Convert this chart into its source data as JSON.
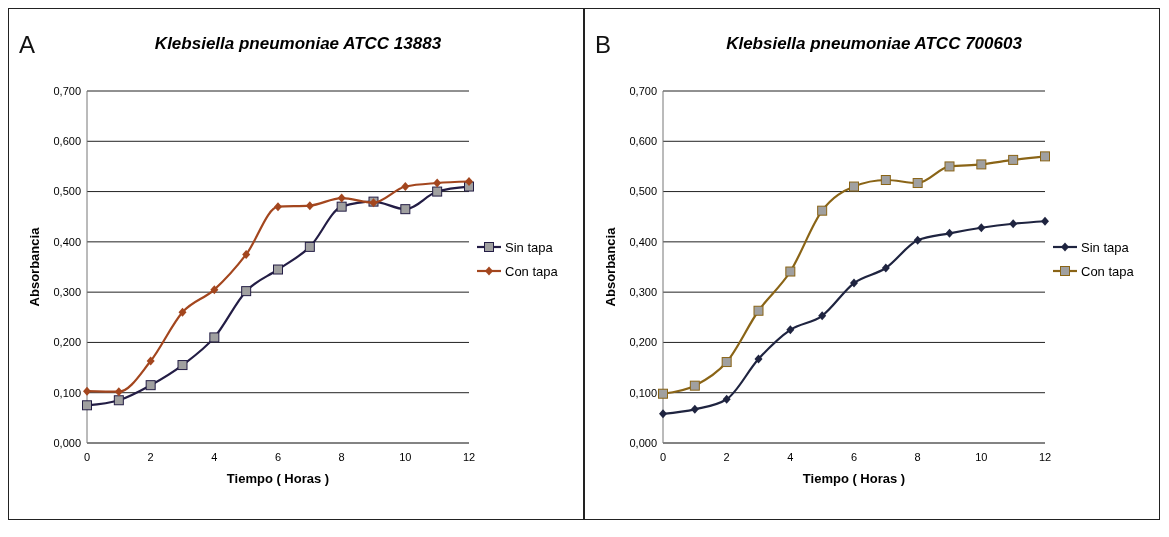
{
  "chart_data": [
    {
      "type": "line",
      "title": "Klebsiella pneumoniae ATCC 13883",
      "annotations": [
        "A"
      ],
      "xlabel": "Tiempo ( Horas )",
      "ylabel": "Absorbancia",
      "x": [
        0,
        1,
        2,
        3,
        4,
        5,
        6,
        7,
        8,
        9,
        10,
        11,
        12
      ],
      "series": [
        {
          "name": "Sin tapa",
          "color": "#231d45",
          "marker": "square",
          "values": [
            0.075,
            0.085,
            0.115,
            0.155,
            0.21,
            0.302,
            0.345,
            0.39,
            0.47,
            0.48,
            0.465,
            0.5,
            0.51
          ]
        },
        {
          "name": "Con tapa",
          "color": "#a3461e",
          "marker": "diamond",
          "values": [
            0.103,
            0.102,
            0.163,
            0.26,
            0.305,
            0.375,
            0.47,
            0.472,
            0.487,
            0.478,
            0.51,
            0.517,
            0.52
          ]
        }
      ],
      "xlim": [
        0,
        12
      ],
      "xticks": [
        0,
        2,
        4,
        6,
        8,
        10,
        12
      ],
      "ylim": [
        0,
        0.7
      ],
      "yticks": [
        {
          "value": 0,
          "label": "0,000"
        },
        {
          "value": 0.1,
          "label": "0,100"
        },
        {
          "value": 0.2,
          "label": "0,200"
        },
        {
          "value": 0.3,
          "label": "0,300"
        },
        {
          "value": 0.4,
          "label": "0,400"
        },
        {
          "value": 0.5,
          "label": "0,500"
        },
        {
          "value": 0.6,
          "label": "0,600"
        },
        {
          "value": 0.7,
          "label": "0,700"
        }
      ],
      "grid": "y",
      "legend": "right"
    },
    {
      "type": "line",
      "title": "Klebsiella pneumoniae ATCC 700603",
      "annotations": [
        "B"
      ],
      "xlabel": "Tiempo ( Horas )",
      "ylabel": "Absorbancia",
      "x": [
        0,
        1,
        2,
        3,
        4,
        5,
        6,
        7,
        8,
        9,
        10,
        11,
        12
      ],
      "series": [
        {
          "name": "Sin tapa",
          "color": "#1f2440",
          "marker": "diamond",
          "values": [
            0.058,
            0.067,
            0.087,
            0.167,
            0.225,
            0.253,
            0.318,
            0.348,
            0.403,
            0.417,
            0.428,
            0.436,
            0.441
          ]
        },
        {
          "name": "Con tapa",
          "color": "#8a6416",
          "marker": "square",
          "values": [
            0.098,
            0.114,
            0.161,
            0.263,
            0.341,
            0.462,
            0.51,
            0.523,
            0.517,
            0.55,
            0.554,
            0.563,
            0.57
          ]
        }
      ],
      "xlim": [
        0,
        12
      ],
      "xticks": [
        0,
        2,
        4,
        6,
        8,
        10,
        12
      ],
      "ylim": [
        0,
        0.7
      ],
      "yticks": [
        {
          "value": 0,
          "label": "0,000"
        },
        {
          "value": 0.1,
          "label": "0,100"
        },
        {
          "value": 0.2,
          "label": "0,200"
        },
        {
          "value": 0.3,
          "label": "0,300"
        },
        {
          "value": 0.4,
          "label": "0,400"
        },
        {
          "value": 0.5,
          "label": "0,500"
        },
        {
          "value": 0.6,
          "label": "0,600"
        },
        {
          "value": 0.7,
          "label": "0,700"
        }
      ],
      "grid": "y",
      "legend": "right"
    }
  ]
}
